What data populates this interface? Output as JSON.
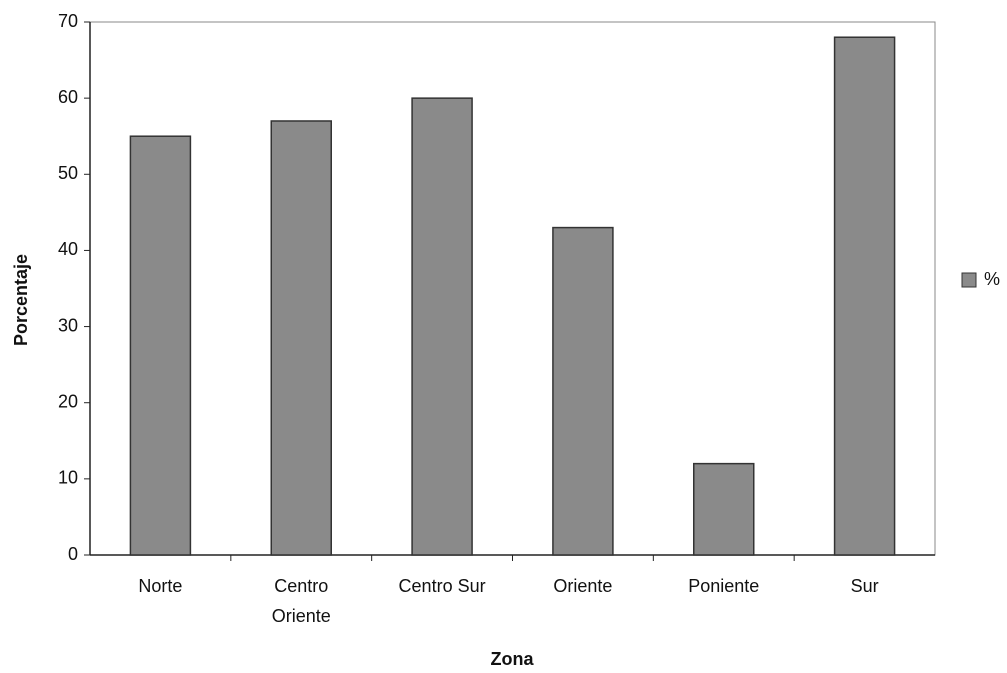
{
  "chart_data": {
    "type": "bar",
    "x_label": "Zona",
    "y_label": "Porcentaje",
    "categories": [
      "Norte",
      "Centro Oriente",
      "Centro Sur",
      "Oriente",
      "Poniente",
      "Sur"
    ],
    "series": [
      {
        "name": "%",
        "color": "#8a8a8a",
        "values": [
          55,
          57,
          60,
          43,
          12,
          68
        ]
      }
    ],
    "ylim": [
      0,
      70
    ],
    "yticks": [
      0,
      10,
      20,
      30,
      40,
      50,
      60,
      70
    ],
    "grid": false,
    "legend": "right"
  }
}
